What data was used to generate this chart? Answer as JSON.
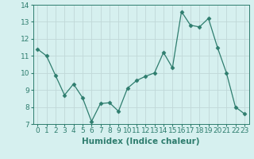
{
  "x": [
    0,
    1,
    2,
    3,
    4,
    5,
    6,
    7,
    8,
    9,
    10,
    11,
    12,
    13,
    14,
    15,
    16,
    17,
    18,
    19,
    20,
    21,
    22,
    23
  ],
  "y": [
    11.4,
    11.0,
    9.85,
    8.7,
    9.35,
    8.55,
    7.15,
    8.2,
    8.25,
    7.75,
    9.1,
    9.55,
    9.8,
    10.0,
    11.2,
    10.3,
    13.6,
    12.8,
    12.7,
    13.2,
    11.5,
    10.0,
    8.0,
    7.6
  ],
  "line_color": "#2e7d6e",
  "marker": "D",
  "marker_size": 2.5,
  "bg_color": "#d6f0ef",
  "grid_color": "#c0d8d8",
  "xlabel": "Humidex (Indice chaleur)",
  "xlabel_fontsize": 7.5,
  "tick_fontsize": 6.5,
  "ylim": [
    7,
    14
  ],
  "xlim": [
    -0.5,
    23.5
  ],
  "yticks": [
    7,
    8,
    9,
    10,
    11,
    12,
    13,
    14
  ],
  "xticks": [
    0,
    1,
    2,
    3,
    4,
    5,
    6,
    7,
    8,
    9,
    10,
    11,
    12,
    13,
    14,
    15,
    16,
    17,
    18,
    19,
    20,
    21,
    22,
    23
  ]
}
